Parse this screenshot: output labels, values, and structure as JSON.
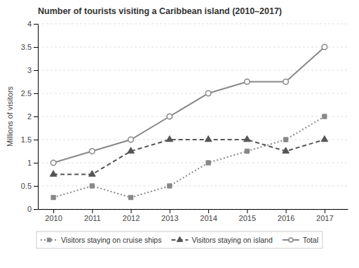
{
  "chart_data": {
    "type": "line",
    "title": "Number of tourists visiting a Caribbean island (2010–2017)",
    "y_label": "Millions of visitors",
    "x": [
      2010,
      2011,
      2012,
      2013,
      2014,
      2015,
      2016,
      2017
    ],
    "series": [
      {
        "name": "Visitors staying on cruise ships",
        "color": "#888888",
        "marker": "square",
        "line_style": "dotted",
        "values": [
          0.25,
          0.5,
          0.25,
          0.5,
          1.0,
          1.25,
          1.5,
          2.0
        ]
      },
      {
        "name": "Visitors staying on island",
        "color": "#555555",
        "marker": "triangle",
        "line_style": "dashed",
        "values": [
          0.75,
          0.75,
          1.25,
          1.5,
          1.5,
          1.5,
          1.25,
          1.5
        ]
      },
      {
        "name": "Total",
        "color": "#888888",
        "marker": "circle",
        "line_style": "solid",
        "values": [
          1.0,
          1.25,
          1.5,
          2.0,
          2.5,
          2.75,
          2.75,
          3.5
        ]
      }
    ],
    "xlim": [
      2009.6,
      2017.6
    ],
    "xticks": [
      2010,
      2011,
      2012,
      2013,
      2014,
      2015,
      2016,
      2017
    ],
    "ylim": [
      0,
      4
    ],
    "yticks": [
      0,
      0.5,
      1,
      1.5,
      2,
      2.5,
      3,
      3.5,
      4
    ],
    "grid": true,
    "legend": "bottom"
  }
}
